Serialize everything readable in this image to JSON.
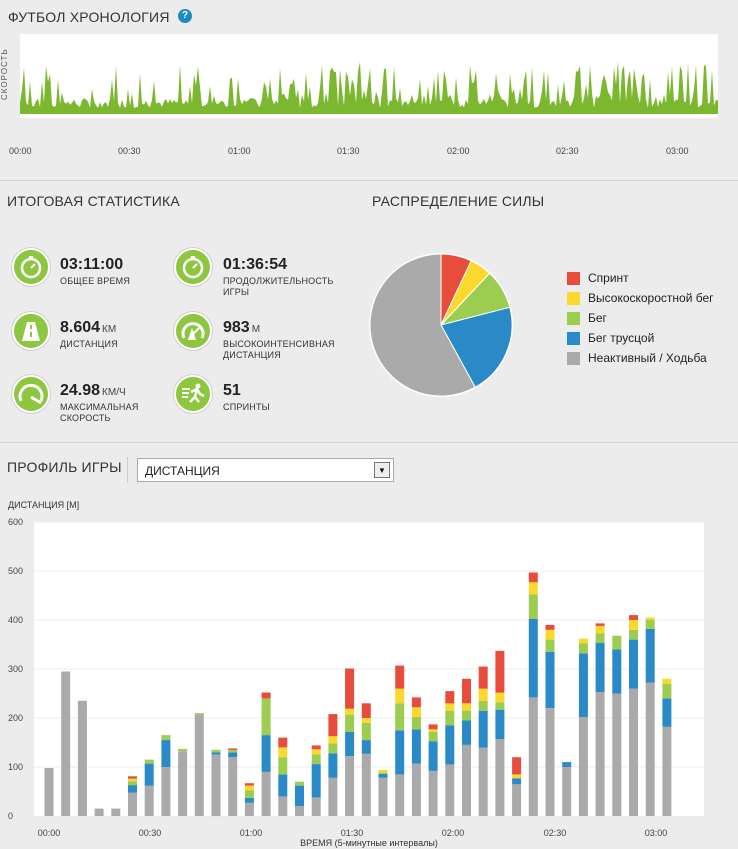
{
  "timeline": {
    "title": "ФУТБОЛ ХРОНОЛОГИЯ",
    "help_icon": "?",
    "ylabel": "СКОРОСТЬ",
    "ticks": [
      "00:00",
      "00:30",
      "01:00",
      "01:30",
      "02:00",
      "02:30",
      "03:00"
    ],
    "color": "#7cb82f"
  },
  "stats": {
    "title": "ИТОГОВАЯ СТАТИСТИКА",
    "items": [
      {
        "icon": "stopwatch-icon",
        "value": "03:11:00",
        "unit": "",
        "label": "ОБЩЕЕ ВРЕМЯ"
      },
      {
        "icon": "stopwatch-icon",
        "value": "01:36:54",
        "unit": "",
        "label": "ПРОДОЛЖИТЕЛЬНОСТЬ ИГРЫ"
      },
      {
        "icon": "road-icon",
        "value": "8.604",
        "unit": "КМ",
        "label": "ДИСТАНЦИЯ"
      },
      {
        "icon": "high-intensity-icon",
        "value": "983",
        "unit": "М",
        "label": "ВЫСОКОИНТЕНСИВНАЯ ДИСТАНЦИЯ"
      },
      {
        "icon": "speedometer-icon",
        "value": "24.98",
        "unit": "КМ/Ч",
        "label": "МАКСИМАЛЬНАЯ СКОРОСТЬ"
      },
      {
        "icon": "sprinter-icon",
        "value": "51",
        "unit": "",
        "label": "СПРИНТЫ"
      }
    ]
  },
  "power": {
    "title": "РАСПРЕДЕЛЕНИЕ СИЛЫ",
    "legend": [
      {
        "label": "Спринт",
        "color": "#e84c3d"
      },
      {
        "label": "Высокоскоростной бег",
        "color": "#fbd82c"
      },
      {
        "label": "Бег",
        "color": "#9ccd50"
      },
      {
        "label": "Бег трусцой",
        "color": "#2a8ac8"
      },
      {
        "label": "Неактивный / Ходьба",
        "color": "#aaaaaa"
      }
    ]
  },
  "profile": {
    "title": "ПРОФИЛЬ ИГРЫ",
    "select_value": "ДИСТАНЦИЯ",
    "select_arrow": "▼"
  },
  "chart_data": [
    {
      "type": "pie",
      "title": "РАСПРЕДЕЛЕНИЕ СИЛЫ",
      "series": [
        {
          "name": "Спринт",
          "value": 0.07
        },
        {
          "name": "Высокоскоростной бег",
          "value": 0.05
        },
        {
          "name": "Бег",
          "value": 0.09
        },
        {
          "name": "Бег трусцой",
          "value": 0.21
        },
        {
          "name": "Неактивный / Ходьба",
          "value": 0.58
        }
      ]
    },
    {
      "type": "bar",
      "stacked": true,
      "ylabel": "ДИСТАНЦИЯ [М]",
      "xlabel": "ВРЕМЯ (5-минутные интервалы)",
      "ylim": [
        0,
        600
      ],
      "yticks": [
        "0",
        "100",
        "200",
        "300",
        "400",
        "500",
        "600"
      ],
      "xticks": [
        "00:00",
        "00:30",
        "01:00",
        "01:30",
        "02:00",
        "02:30",
        "03:00"
      ],
      "colors": [
        "#aaaaaa",
        "#2a8ac8",
        "#9ccd50",
        "#fbd82c",
        "#e84c3d"
      ],
      "series": [
        {
          "name": "Неактивный / Ходьба",
          "values": [
            98,
            295,
            235,
            15,
            15,
            48,
            62,
            100,
            132,
            207,
            125,
            120,
            27,
            90,
            40,
            20,
            38,
            78,
            122,
            127,
            78,
            85,
            107,
            92,
            105,
            145,
            140,
            157,
            65,
            242,
            220,
            100,
            202,
            253,
            250,
            260,
            272,
            182
          ]
        },
        {
          "name": "Бег трусцой",
          "values": [
            0,
            0,
            0,
            0,
            0,
            15,
            45,
            55,
            0,
            0,
            5,
            10,
            10,
            75,
            45,
            42,
            68,
            50,
            50,
            28,
            8,
            90,
            70,
            60,
            80,
            50,
            75,
            60,
            12,
            160,
            115,
            10,
            130,
            100,
            90,
            100,
            110,
            58
          ]
        },
        {
          "name": "Бег",
          "values": [
            0,
            0,
            0,
            0,
            0,
            8,
            8,
            10,
            5,
            3,
            5,
            5,
            15,
            75,
            35,
            8,
            20,
            20,
            35,
            35,
            3,
            55,
            25,
            20,
            30,
            20,
            20,
            15,
            0,
            50,
            25,
            0,
            20,
            20,
            28,
            20,
            18,
            30
          ]
        },
        {
          "name": "Высокоскоростной бег",
          "values": [
            0,
            0,
            0,
            0,
            0,
            5,
            0,
            0,
            0,
            0,
            0,
            0,
            10,
            0,
            20,
            0,
            10,
            15,
            12,
            10,
            5,
            30,
            20,
            5,
            15,
            15,
            25,
            20,
            8,
            25,
            20,
            0,
            10,
            15,
            0,
            20,
            5,
            10
          ]
        },
        {
          "name": "Спринт",
          "values": [
            0,
            0,
            0,
            0,
            0,
            5,
            0,
            0,
            0,
            0,
            0,
            3,
            5,
            12,
            20,
            0,
            8,
            45,
            82,
            30,
            0,
            47,
            20,
            10,
            25,
            50,
            45,
            85,
            35,
            20,
            10,
            0,
            0,
            5,
            0,
            10,
            0,
            0
          ]
        }
      ]
    }
  ]
}
